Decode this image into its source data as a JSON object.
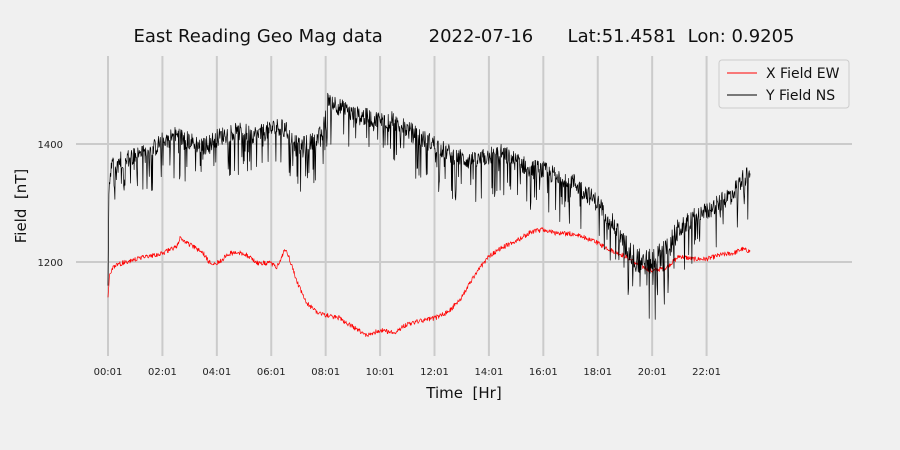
{
  "chart_data": {
    "type": "line",
    "title": "East Reading Geo Mag data        2022-07-16      Lat:51.4581  Lon: 0.9205",
    "xlabel": "Time  [Hr]",
    "ylabel": "Field  [nT]",
    "x_ticks": [
      "00:01",
      "02:01",
      "04:01",
      "06:01",
      "08:01",
      "10:01",
      "12:01",
      "14:01",
      "16:01",
      "18:01",
      "20:01",
      "22:01"
    ],
    "y_ticks": [
      1200,
      1400
    ],
    "xlim": [
      0,
      24
    ],
    "ylim": [
      1040,
      1550
    ],
    "grid": true,
    "legend_position": "top-right",
    "series": [
      {
        "name": "X Field EW",
        "color": "#ff0000",
        "noise": 8,
        "x": [
          0.0,
          0.05,
          0.15,
          0.5,
          1.0,
          1.5,
          2.0,
          2.5,
          2.65,
          3.0,
          3.5,
          3.7,
          4.0,
          4.5,
          5.0,
          5.5,
          6.0,
          6.2,
          6.5,
          6.6,
          7.0,
          7.3,
          7.7,
          8.0,
          8.5,
          9.0,
          9.5,
          10.0,
          10.5,
          11.0,
          11.5,
          12.0,
          12.5,
          13.0,
          13.5,
          14.0,
          14.5,
          15.0,
          15.5,
          16.0,
          16.5,
          17.0,
          17.5,
          18.0,
          18.5,
          19.0,
          19.5,
          20.0,
          20.5,
          21.0,
          21.5,
          22.0,
          22.5,
          23.0,
          23.3,
          23.6
        ],
        "y": [
          1140,
          1175,
          1190,
          1198,
          1205,
          1210,
          1215,
          1225,
          1240,
          1230,
          1215,
          1200,
          1198,
          1215,
          1215,
          1198,
          1198,
          1190,
          1220,
          1215,
          1160,
          1130,
          1115,
          1110,
          1105,
          1090,
          1075,
          1085,
          1080,
          1095,
          1100,
          1105,
          1115,
          1140,
          1180,
          1210,
          1225,
          1235,
          1250,
          1255,
          1248,
          1248,
          1242,
          1232,
          1220,
          1210,
          1195,
          1185,
          1190,
          1210,
          1205,
          1205,
          1212,
          1215,
          1222,
          1218
        ]
      },
      {
        "name": "Y Field NS",
        "color": "#000000",
        "noise": 35,
        "x": [
          0.0,
          0.03,
          0.1,
          0.3,
          0.6,
          1.0,
          1.5,
          2.0,
          2.5,
          3.0,
          3.5,
          4.0,
          4.5,
          5.0,
          5.5,
          6.0,
          6.3,
          6.6,
          7.0,
          7.3,
          7.6,
          7.9,
          8.1,
          8.3,
          8.6,
          9.0,
          9.5,
          10.0,
          10.5,
          11.0,
          11.5,
          12.0,
          12.5,
          13.0,
          13.5,
          14.0,
          14.5,
          15.0,
          15.5,
          16.0,
          16.5,
          17.0,
          17.5,
          18.0,
          18.5,
          19.0,
          19.3,
          19.6,
          20.0,
          20.5,
          21.0,
          21.5,
          22.0,
          22.5,
          23.0,
          23.3,
          23.6
        ],
        "y": [
          1160,
          1320,
          1360,
          1370,
          1375,
          1380,
          1385,
          1405,
          1415,
          1405,
          1395,
          1410,
          1420,
          1420,
          1415,
          1425,
          1430,
          1420,
          1395,
          1400,
          1405,
          1420,
          1480,
          1470,
          1460,
          1450,
          1445,
          1440,
          1440,
          1425,
          1410,
          1400,
          1385,
          1375,
          1370,
          1380,
          1385,
          1370,
          1360,
          1355,
          1345,
          1340,
          1320,
          1300,
          1270,
          1230,
          1210,
          1200,
          1200,
          1220,
          1255,
          1275,
          1285,
          1300,
          1320,
          1340,
          1350
        ]
      }
    ]
  }
}
